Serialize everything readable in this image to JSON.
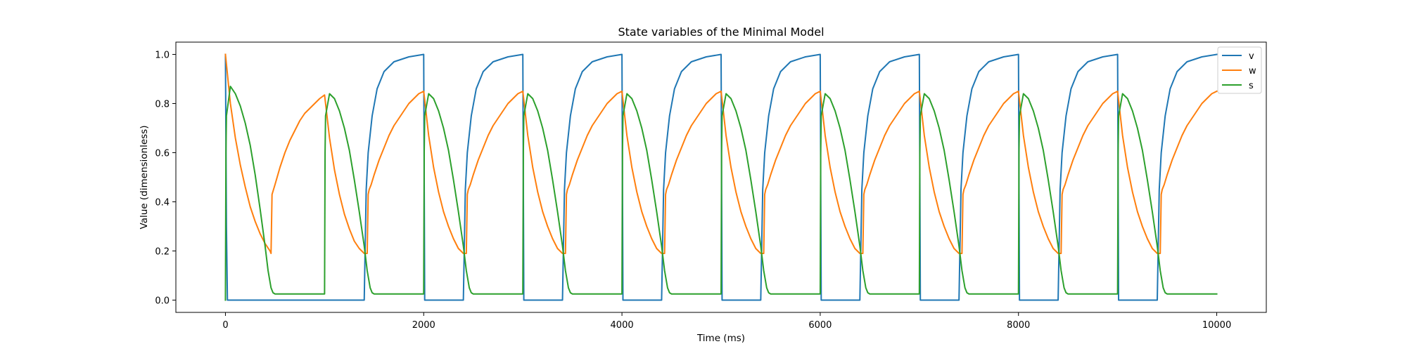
{
  "chart_data": {
    "type": "line",
    "title": "State variables of the Minimal Model",
    "xlabel": "Time (ms)",
    "ylabel": "Value (dimensionless)",
    "xlim": [
      -500,
      10500
    ],
    "ylim": [
      -0.05,
      1.05
    ],
    "xticks": [
      0,
      2000,
      4000,
      6000,
      8000,
      10000
    ],
    "xtick_labels": [
      "0",
      "2000",
      "4000",
      "6000",
      "8000",
      "10000"
    ],
    "yticks": [
      0.0,
      0.2,
      0.4,
      0.6,
      0.8,
      1.0
    ],
    "ytick_labels": [
      "0.0",
      "0.2",
      "0.4",
      "0.6",
      "0.8",
      "1.0"
    ],
    "grid": false,
    "legend_position": "top-right",
    "series": [
      {
        "name": "v",
        "color": "#1f77b4",
        "x": [
          0,
          10,
          20,
          980,
          990,
          1000,
          1010,
          1020,
          1400,
          1420,
          1440,
          1480,
          1530,
          1600,
          1700,
          1850,
          2000,
          2010,
          2020,
          2400,
          2420,
          2440,
          2480,
          2530,
          2600,
          2700,
          2850,
          3000,
          3010,
          3020,
          3400,
          3420,
          3440,
          3480,
          3530,
          3600,
          3700,
          3850,
          4000,
          4010,
          4020,
          4400,
          4420,
          4440,
          4480,
          4530,
          4600,
          4700,
          4850,
          5000,
          5010,
          5020,
          5400,
          5420,
          5440,
          5480,
          5530,
          5600,
          5700,
          5850,
          6000,
          6010,
          6020,
          6400,
          6420,
          6440,
          6480,
          6530,
          6600,
          6700,
          6850,
          7000,
          7010,
          7020,
          7400,
          7420,
          7440,
          7480,
          7530,
          7600,
          7700,
          7850,
          8000,
          8010,
          8020,
          8400,
          8420,
          8440,
          8480,
          8530,
          8600,
          8700,
          8850,
          9000,
          9010,
          9020,
          9400,
          9420,
          9440,
          9480,
          9530,
          9600,
          9700,
          9850,
          10000
        ],
        "values": [
          1.0,
          0.3,
          0.0,
          0.0,
          0.0,
          0.0,
          0.0,
          0.0,
          0.0,
          0.45,
          0.6,
          0.75,
          0.86,
          0.93,
          0.97,
          0.99,
          1.0,
          0.0,
          0.0,
          0.0,
          0.45,
          0.6,
          0.75,
          0.86,
          0.93,
          0.97,
          0.99,
          1.0,
          0.0,
          0.0,
          0.0,
          0.45,
          0.6,
          0.75,
          0.86,
          0.93,
          0.97,
          0.99,
          1.0,
          0.0,
          0.0,
          0.0,
          0.45,
          0.6,
          0.75,
          0.86,
          0.93,
          0.97,
          0.99,
          1.0,
          0.0,
          0.0,
          0.0,
          0.45,
          0.6,
          0.75,
          0.86,
          0.93,
          0.97,
          0.99,
          1.0,
          0.0,
          0.0,
          0.0,
          0.45,
          0.6,
          0.75,
          0.86,
          0.93,
          0.97,
          0.99,
          1.0,
          0.0,
          0.0,
          0.0,
          0.45,
          0.6,
          0.75,
          0.86,
          0.93,
          0.97,
          0.99,
          1.0,
          0.0,
          0.0,
          0.0,
          0.45,
          0.6,
          0.75,
          0.86,
          0.93,
          0.97,
          0.99,
          1.0,
          0.0,
          0.0,
          0.0,
          0.45,
          0.6,
          0.75,
          0.86,
          0.93,
          0.97,
          0.99,
          1.0
        ]
      },
      {
        "name": "w",
        "color": "#ff7f0e",
        "x": [
          0,
          50,
          100,
          150,
          200,
          250,
          300,
          350,
          400,
          450,
          460,
          470,
          500,
          550,
          600,
          650,
          700,
          750,
          800,
          850,
          900,
          950,
          1000,
          1050,
          1100,
          1150,
          1200,
          1250,
          1300,
          1350,
          1400,
          1430,
          1440,
          1450,
          1470,
          1500,
          1550,
          1600,
          1650,
          1700,
          1750,
          1800,
          1850,
          1900,
          1950,
          2000,
          2050,
          2100,
          2150,
          2200,
          2250,
          2300,
          2350,
          2400,
          2430,
          2440,
          2450,
          2470,
          2500,
          2550,
          2600,
          2650,
          2700,
          2750,
          2800,
          2850,
          2900,
          2950,
          3000,
          3050,
          3100,
          3150,
          3200,
          3250,
          3300,
          3350,
          3400,
          3430,
          3440,
          3450,
          3470,
          3500,
          3550,
          3600,
          3650,
          3700,
          3750,
          3800,
          3850,
          3900,
          3950,
          4000,
          4050,
          4100,
          4150,
          4200,
          4250,
          4300,
          4350,
          4400,
          4430,
          4440,
          4450,
          4470,
          4500,
          4550,
          4600,
          4650,
          4700,
          4750,
          4800,
          4850,
          4900,
          4950,
          5000,
          5050,
          5100,
          5150,
          5200,
          5250,
          5300,
          5350,
          5400,
          5430,
          5440,
          5450,
          5470,
          5500,
          5550,
          5600,
          5650,
          5700,
          5750,
          5800,
          5850,
          5900,
          5950,
          6000,
          6050,
          6100,
          6150,
          6200,
          6250,
          6300,
          6350,
          6400,
          6430,
          6440,
          6450,
          6470,
          6500,
          6550,
          6600,
          6650,
          6700,
          6750,
          6800,
          6850,
          6900,
          6950,
          7000,
          7050,
          7100,
          7150,
          7200,
          7250,
          7300,
          7350,
          7400,
          7430,
          7440,
          7450,
          7470,
          7500,
          7550,
          7600,
          7650,
          7700,
          7750,
          7800,
          7850,
          7900,
          7950,
          8000,
          8050,
          8100,
          8150,
          8200,
          8250,
          8300,
          8350,
          8400,
          8430,
          8440,
          8450,
          8470,
          8500,
          8550,
          8600,
          8650,
          8700,
          8750,
          8800,
          8850,
          8900,
          8950,
          9000,
          9050,
          9100,
          9150,
          9200,
          9250,
          9300,
          9350,
          9400,
          9430,
          9440,
          9450,
          9470,
          9500,
          9550,
          9600,
          9650,
          9700,
          9750,
          9800,
          9850,
          9900,
          9950,
          10000
        ],
        "values": [
          1.0,
          0.8,
          0.66,
          0.55,
          0.46,
          0.38,
          0.32,
          0.27,
          0.23,
          0.2,
          0.19,
          0.43,
          0.47,
          0.54,
          0.6,
          0.65,
          0.69,
          0.73,
          0.76,
          0.78,
          0.8,
          0.82,
          0.835,
          0.66,
          0.53,
          0.43,
          0.35,
          0.29,
          0.24,
          0.21,
          0.19,
          0.19,
          0.43,
          0.45,
          0.47,
          0.51,
          0.57,
          0.62,
          0.67,
          0.71,
          0.74,
          0.77,
          0.8,
          0.82,
          0.84,
          0.85,
          0.67,
          0.54,
          0.44,
          0.36,
          0.3,
          0.25,
          0.21,
          0.19,
          0.19,
          0.43,
          0.45,
          0.47,
          0.51,
          0.57,
          0.62,
          0.67,
          0.71,
          0.74,
          0.77,
          0.8,
          0.82,
          0.84,
          0.85,
          0.67,
          0.54,
          0.44,
          0.36,
          0.3,
          0.25,
          0.21,
          0.19,
          0.19,
          0.43,
          0.45,
          0.47,
          0.51,
          0.57,
          0.62,
          0.67,
          0.71,
          0.74,
          0.77,
          0.8,
          0.82,
          0.84,
          0.85,
          0.67,
          0.54,
          0.44,
          0.36,
          0.3,
          0.25,
          0.21,
          0.19,
          0.19,
          0.43,
          0.45,
          0.47,
          0.51,
          0.57,
          0.62,
          0.67,
          0.71,
          0.74,
          0.77,
          0.8,
          0.82,
          0.84,
          0.85,
          0.67,
          0.54,
          0.44,
          0.36,
          0.3,
          0.25,
          0.21,
          0.19,
          0.19,
          0.43,
          0.45,
          0.47,
          0.51,
          0.57,
          0.62,
          0.67,
          0.71,
          0.74,
          0.77,
          0.8,
          0.82,
          0.84,
          0.85,
          0.67,
          0.54,
          0.44,
          0.36,
          0.3,
          0.25,
          0.21,
          0.19,
          0.19,
          0.43,
          0.45,
          0.47,
          0.51,
          0.57,
          0.62,
          0.67,
          0.71,
          0.74,
          0.77,
          0.8,
          0.82,
          0.84,
          0.85,
          0.67,
          0.54,
          0.44,
          0.36,
          0.3,
          0.25,
          0.21,
          0.19,
          0.19,
          0.43,
          0.45,
          0.47,
          0.51,
          0.57,
          0.62,
          0.67,
          0.71,
          0.74,
          0.77,
          0.8,
          0.82,
          0.84,
          0.85,
          0.67,
          0.54,
          0.44,
          0.36,
          0.3,
          0.25,
          0.21,
          0.19,
          0.19,
          0.43,
          0.45,
          0.47,
          0.51,
          0.57,
          0.62,
          0.67,
          0.71,
          0.74,
          0.77,
          0.8,
          0.82,
          0.84,
          0.85,
          0.67,
          0.54,
          0.44,
          0.36,
          0.3,
          0.25,
          0.21,
          0.19,
          0.19,
          0.43,
          0.45,
          0.47,
          0.51,
          0.57,
          0.62,
          0.67,
          0.71,
          0.74,
          0.77,
          0.8,
          0.82,
          0.84,
          0.85
        ]
      },
      {
        "name": "s",
        "color": "#2ca02c",
        "x": [
          0,
          5,
          10,
          50,
          100,
          150,
          200,
          250,
          300,
          350,
          400,
          430,
          460,
          480,
          500,
          1000,
          1005,
          1010,
          1050,
          1100,
          1150,
          1200,
          1250,
          1300,
          1350,
          1400,
          1430,
          1460,
          1480,
          1500,
          2000,
          2005,
          2010,
          2050,
          2100,
          2150,
          2200,
          2250,
          2300,
          2350,
          2400,
          2430,
          2460,
          2480,
          2500,
          3000,
          3005,
          3010,
          3050,
          3100,
          3150,
          3200,
          3250,
          3300,
          3350,
          3400,
          3430,
          3460,
          3480,
          3500,
          4000,
          4005,
          4010,
          4050,
          4100,
          4150,
          4200,
          4250,
          4300,
          4350,
          4400,
          4430,
          4460,
          4480,
          4500,
          5000,
          5005,
          5010,
          5050,
          5100,
          5150,
          5200,
          5250,
          5300,
          5350,
          5400,
          5430,
          5460,
          5480,
          5500,
          6000,
          6005,
          6010,
          6050,
          6100,
          6150,
          6200,
          6250,
          6300,
          6350,
          6400,
          6430,
          6460,
          6480,
          6500,
          7000,
          7005,
          7010,
          7050,
          7100,
          7150,
          7200,
          7250,
          7300,
          7350,
          7400,
          7430,
          7460,
          7480,
          7500,
          8000,
          8005,
          8010,
          8050,
          8100,
          8150,
          8200,
          8250,
          8300,
          8350,
          8400,
          8430,
          8460,
          8480,
          8500,
          9000,
          9005,
          9010,
          9050,
          9100,
          9150,
          9200,
          9250,
          9300,
          9350,
          9400,
          9430,
          9460,
          9480,
          9500,
          10000
        ],
        "values": [
          0.0,
          0.6,
          0.75,
          0.87,
          0.84,
          0.79,
          0.72,
          0.63,
          0.51,
          0.37,
          0.22,
          0.12,
          0.05,
          0.03,
          0.025,
          0.025,
          0.6,
          0.75,
          0.84,
          0.82,
          0.77,
          0.7,
          0.61,
          0.49,
          0.36,
          0.22,
          0.12,
          0.05,
          0.03,
          0.025,
          0.025,
          0.6,
          0.75,
          0.84,
          0.82,
          0.77,
          0.7,
          0.61,
          0.49,
          0.36,
          0.22,
          0.12,
          0.05,
          0.03,
          0.025,
          0.025,
          0.6,
          0.75,
          0.84,
          0.82,
          0.77,
          0.7,
          0.61,
          0.49,
          0.36,
          0.22,
          0.12,
          0.05,
          0.03,
          0.025,
          0.025,
          0.6,
          0.75,
          0.84,
          0.82,
          0.77,
          0.7,
          0.61,
          0.49,
          0.36,
          0.22,
          0.12,
          0.05,
          0.03,
          0.025,
          0.025,
          0.6,
          0.75,
          0.84,
          0.82,
          0.77,
          0.7,
          0.61,
          0.49,
          0.36,
          0.22,
          0.12,
          0.05,
          0.03,
          0.025,
          0.025,
          0.6,
          0.75,
          0.84,
          0.82,
          0.77,
          0.7,
          0.61,
          0.49,
          0.36,
          0.22,
          0.12,
          0.05,
          0.03,
          0.025,
          0.025,
          0.6,
          0.75,
          0.84,
          0.82,
          0.77,
          0.7,
          0.61,
          0.49,
          0.36,
          0.22,
          0.12,
          0.05,
          0.03,
          0.025,
          0.025,
          0.6,
          0.75,
          0.84,
          0.82,
          0.77,
          0.7,
          0.61,
          0.49,
          0.36,
          0.22,
          0.12,
          0.05,
          0.03,
          0.025,
          0.025,
          0.6,
          0.75,
          0.84,
          0.82,
          0.77,
          0.7,
          0.61,
          0.49,
          0.36,
          0.22,
          0.12,
          0.05,
          0.03,
          0.025,
          0.025
        ]
      }
    ]
  }
}
